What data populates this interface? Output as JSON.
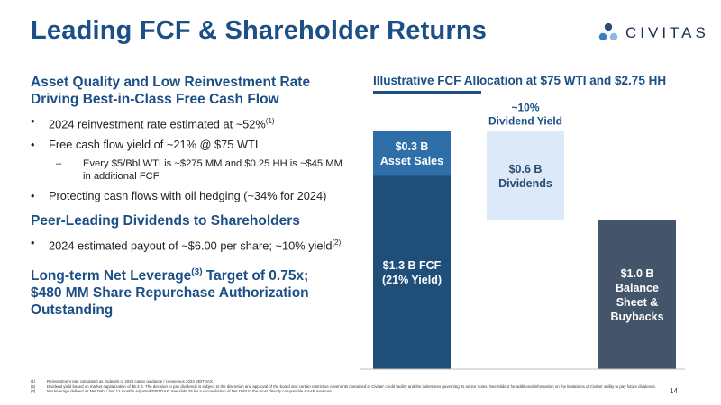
{
  "header": {
    "title": "Leading FCF & Shareholder Returns",
    "logo_text": "CIVITAS"
  },
  "left": {
    "heading1": "Asset Quality and Low Reinvestment Rate Driving Best-in-Class Free Cash Flow",
    "bullet1": "2024 reinvestment rate estimated at ~52%",
    "bullet1_sup": "(1)",
    "bullet2": "Free cash flow yield of ~21% @ $75 WTI",
    "sub1": "Every $5/Bbl WTI is ~$275 MM and $0.25 HH is ~$45 MM in additional FCF",
    "bullet3": "Protecting cash flows with oil hedging (~34% for 2024)",
    "heading2": "Peer-Leading Dividends to Shareholders",
    "bullet4": "2024 estimated payout of ~$6.00 per share; ~10% yield",
    "bullet4_sup": "(2)",
    "heading3_a": "Long-term Net Leverage",
    "heading3_sup": "(3)",
    "heading3_b": " Target of 0.75x; $480 MM Share Repurchase Authorization Outstanding"
  },
  "chart_data": {
    "type": "bar",
    "subtype": "waterfall",
    "title": "Illustrative FCF Allocation at $75 WTI and $2.75 HH",
    "unit": "$ B",
    "ylim": [
      0,
      1.6
    ],
    "grid": false,
    "legend": "none",
    "bars": [
      {
        "segments": [
          {
            "name": "FCF",
            "value": 1.3,
            "base": 0,
            "label": [
              "$1.3 B FCF",
              "(21% Yield)"
            ],
            "color": "#1f4e79",
            "text_color": "#ffffff"
          },
          {
            "name": "Asset Sales",
            "value": 0.3,
            "base": 1.3,
            "label": [
              "$0.3 B",
              "Asset Sales"
            ],
            "color": "#2e6ea9",
            "text_color": "#ffffff"
          }
        ]
      },
      {
        "segments": [
          {
            "name": "Dividends",
            "value": 0.6,
            "base": 1.0,
            "label": [
              "$0.6 B",
              "Dividends"
            ],
            "color": "#dbe9f8",
            "text_color": "#2b4a6f"
          }
        ],
        "annotation": [
          "~10%",
          "Dividend Yield"
        ]
      },
      {
        "segments": [
          {
            "name": "Balance Sheet & Buybacks",
            "value": 1.0,
            "base": 0,
            "label": [
              "$1.0 B",
              "Balance",
              "Sheet &",
              "Buybacks"
            ],
            "color": "#44546a",
            "text_color": "#ffffff"
          }
        ]
      }
    ]
  },
  "footnotes": [
    {
      "n": "(1)",
      "text": "Reinvestment rate calculated as midpoint of 2024 capex guidance / consensus 2024 EBITDAX."
    },
    {
      "n": "(2)",
      "text": "Dividend yield based on market capitalization of $6.3 B. The decision to pay dividends is subject to the discretion and approval of the board and certain restrictive covenants contained in Civitas' credit facility and the indentures governing its senior notes. See Slide 2 for additional information on the limitations of Civitas' ability to pay future dividends."
    },
    {
      "n": "(3)",
      "text": "Net leverage defined as Net Debt / last 12 months Adjusted EBITDAX. See slide 25 for a reconciliation of Net Debt to the most directly comparable GAAP measure."
    }
  ],
  "page_number": "14"
}
